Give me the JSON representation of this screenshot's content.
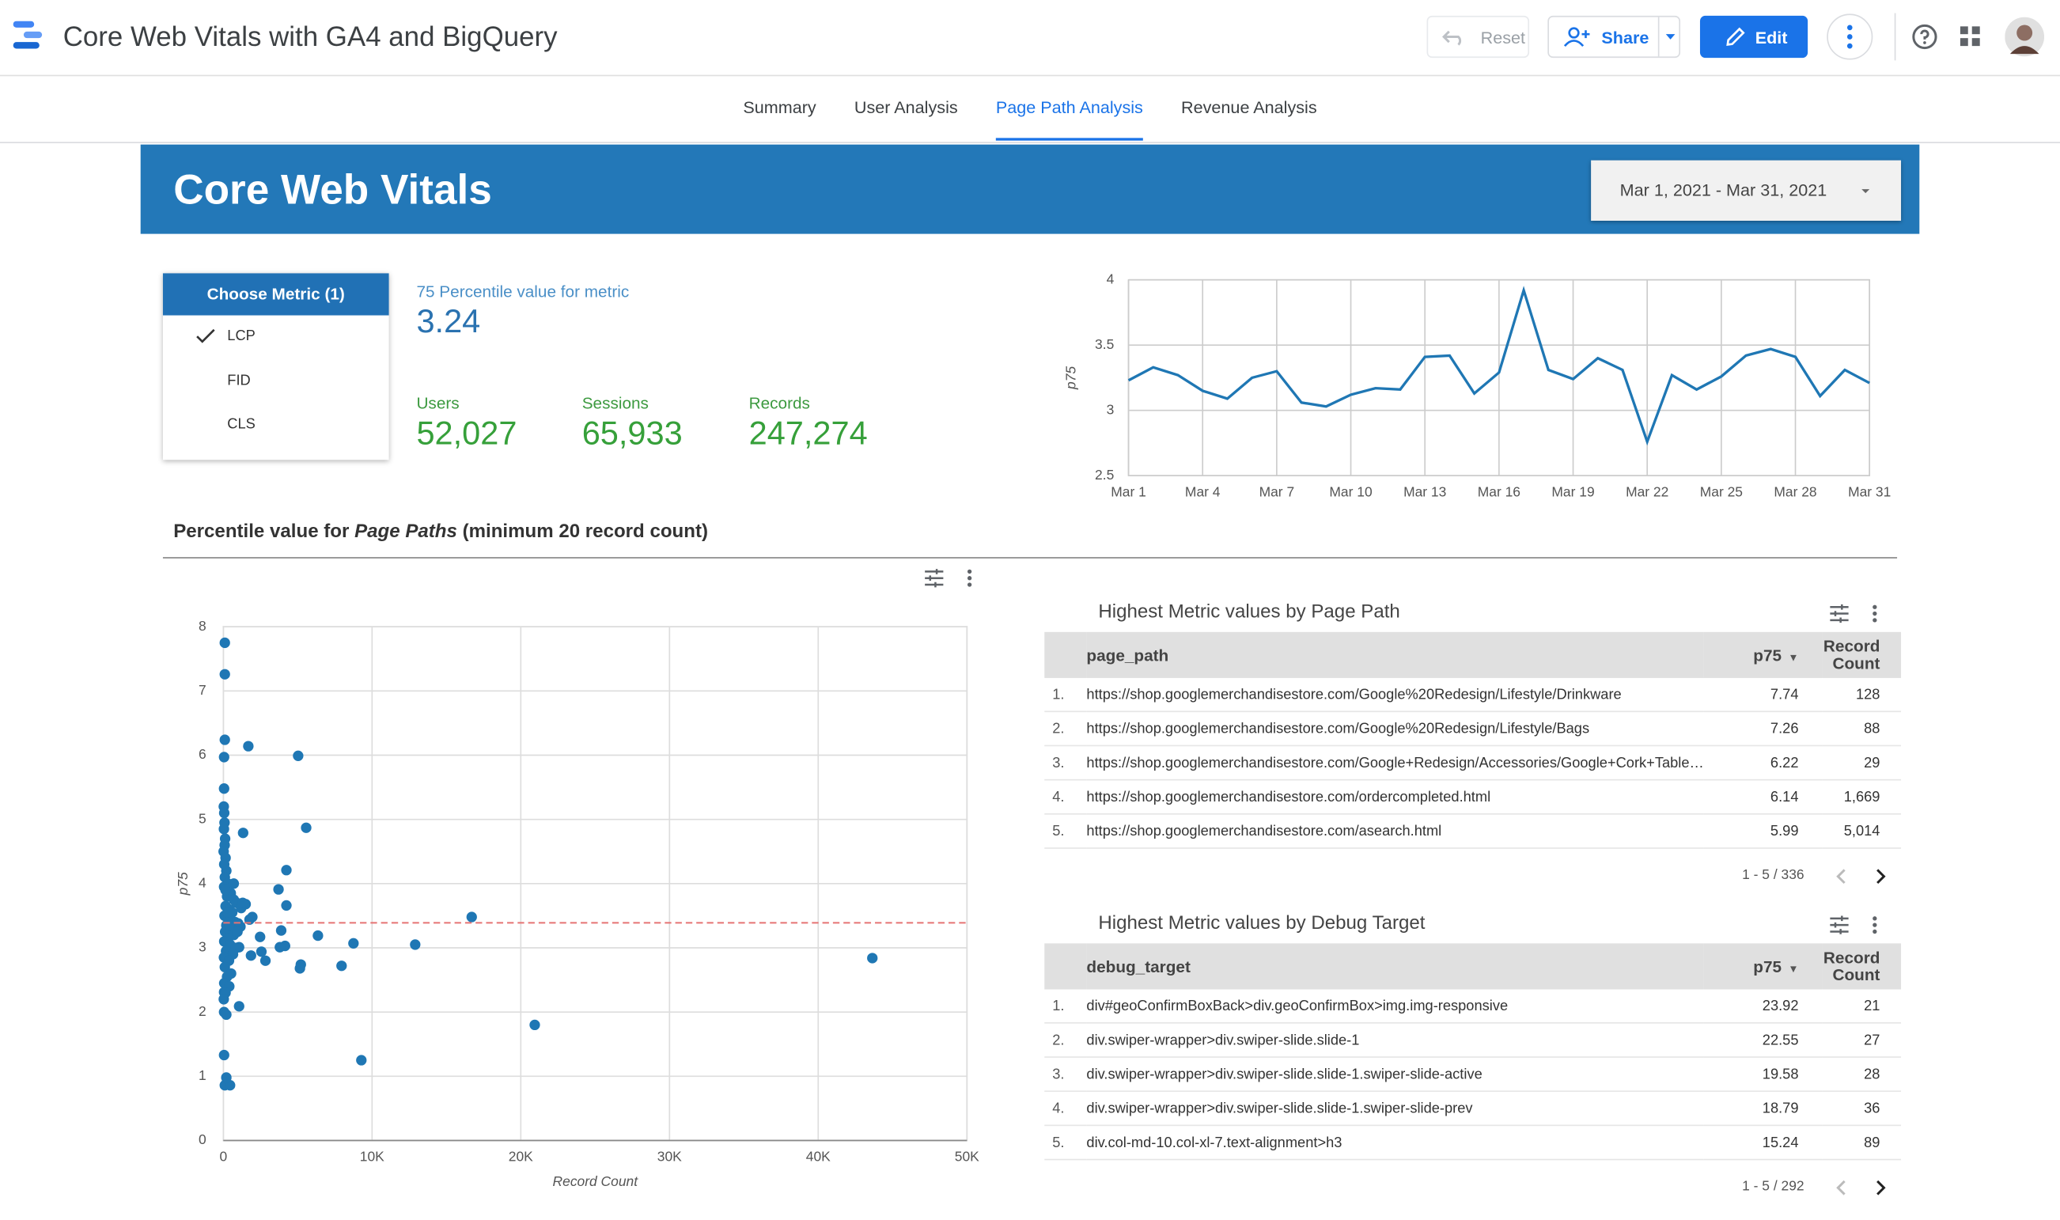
{
  "header": {
    "title": "Core Web Vitals with GA4 and BigQuery",
    "reset": "Reset",
    "share": "Share",
    "edit": "Edit"
  },
  "tabs": [
    "Summary",
    "User Analysis",
    "Page Path Analysis",
    "Revenue Analysis"
  ],
  "active_tab": 2,
  "banner": {
    "title": "Core Web Vitals",
    "date_range": "Mar 1, 2021 - Mar 31, 2021"
  },
  "metric_selector": {
    "title": "Choose Metric (1)",
    "options": [
      "LCP",
      "FID",
      "CLS"
    ],
    "selected": 0
  },
  "kpis": {
    "percentile_label": "75 Percentile value for metric",
    "percentile_value": "3.24",
    "items": [
      {
        "label": "Users",
        "value": "52,027"
      },
      {
        "label": "Sessions",
        "value": "65,933"
      },
      {
        "label": "Records",
        "value": "247,274"
      }
    ]
  },
  "section_title": {
    "before": "Percentile value for ",
    "italic": "Page Paths",
    "after": " (minimum 20 record count)"
  },
  "chart_data": [
    {
      "type": "line",
      "y_label": "p75",
      "color": "#1f77b4",
      "grid": true,
      "categories": [
        "Mar 1",
        null,
        null,
        "Mar 4",
        null,
        null,
        "Mar 7",
        null,
        null,
        "Mar 10",
        null,
        null,
        "Mar 13",
        null,
        null,
        "Mar 16",
        null,
        null,
        "Mar 19",
        null,
        null,
        "Mar 22",
        null,
        null,
        "Mar 25",
        null,
        null,
        "Mar 28",
        null,
        null,
        "Mar 31"
      ],
      "values": [
        3.23,
        3.33,
        3.27,
        3.15,
        3.09,
        3.25,
        3.3,
        3.06,
        3.03,
        3.12,
        3.17,
        3.16,
        3.41,
        3.42,
        3.13,
        3.29,
        3.92,
        3.31,
        3.24,
        3.4,
        3.31,
        2.76,
        3.27,
        3.16,
        3.26,
        3.42,
        3.47,
        3.41,
        3.11,
        3.31,
        3.21
      ],
      "ylim": [
        2.5,
        4
      ],
      "yticks": [
        2.5,
        3,
        3.5,
        4
      ]
    },
    {
      "type": "scatter",
      "x_label": "Record Count",
      "y_label": "p75",
      "color": "#1f77b4",
      "grid": true,
      "reference_line": {
        "value": 3.39,
        "color": "#e57373"
      },
      "x": [
        100,
        100,
        1680,
        5030,
        100,
        50,
        50,
        5570,
        1330,
        4240,
        3710,
        4240,
        16700,
        6360,
        8750,
        12900,
        43640,
        7950,
        5210,
        5150,
        3890,
        4150,
        3800,
        2470,
        2560,
        2830,
        1860,
        1060,
        1760,
        1500,
        1150,
        1950,
        20940,
        9280,
        1060,
        100,
        450,
        200,
        50,
        50,
        200,
        50,
        30,
        60,
        80,
        40,
        120,
        90,
        20,
        150,
        60,
        200,
        100,
        300,
        50,
        500,
        250,
        700,
        900,
        150,
        400,
        1200,
        600,
        80,
        350,
        800,
        1000,
        200,
        550,
        120,
        700,
        300,
        60,
        450,
        850,
        180,
        650,
        40,
        380,
        100,
        520,
        250,
        60,
        400,
        150,
        30,
        300,
        150,
        700,
        400,
        1300,
        950
      ],
      "values": [
        7.75,
        7.26,
        6.14,
        5.99,
        6.24,
        5.97,
        5.48,
        4.87,
        4.79,
        4.21,
        3.91,
        3.66,
        3.48,
        3.19,
        3.07,
        3.05,
        2.84,
        2.72,
        2.74,
        2.68,
        3.27,
        3.03,
        3.01,
        3.17,
        2.94,
        2.8,
        2.88,
        3.01,
        3.44,
        3.68,
        3.33,
        3.48,
        1.8,
        1.25,
        2.09,
        0.86,
        0.86,
        0.98,
        1.33,
        2.0,
        1.96,
        2.31,
        5.2,
        5.1,
        4.95,
        4.85,
        4.7,
        4.6,
        4.5,
        4.4,
        4.3,
        4.2,
        4.1,
        4.0,
        3.95,
        3.85,
        3.8,
        3.75,
        3.7,
        3.65,
        3.6,
        3.62,
        3.55,
        3.5,
        3.45,
        3.4,
        3.38,
        3.35,
        3.3,
        3.25,
        3.2,
        3.15,
        3.1,
        3.05,
        3.0,
        2.95,
        2.9,
        2.85,
        2.8,
        2.7,
        2.6,
        2.55,
        2.45,
        2.4,
        2.3,
        2.2,
        3.55,
        3.9,
        4.0,
        3.35,
        3.7,
        3.25
      ],
      "xlim": [
        0,
        50000
      ],
      "xticks": [
        0,
        {
          "value": 10000,
          "label": "10K"
        },
        {
          "value": 20000,
          "label": "20K"
        },
        {
          "value": 30000,
          "label": "30K"
        },
        {
          "value": 40000,
          "label": "40K"
        },
        {
          "value": 50000,
          "label": "50K"
        }
      ],
      "ylim": [
        0,
        8
      ],
      "yticks": [
        0,
        1,
        2,
        3,
        4,
        5,
        6,
        7,
        8
      ]
    }
  ],
  "tables": [
    {
      "title": "Highest Metric values by Page Path",
      "columns": [
        "page_path",
        "p75",
        "Record Count"
      ],
      "rows": [
        [
          "1.",
          "https://shop.googlemerchandisestore.com/Google%20Redesign/Lifestyle/Drinkware",
          7.74,
          128
        ],
        [
          "2.",
          "https://shop.googlemerchandisestore.com/Google%20Redesign/Lifestyle/Bags",
          7.26,
          88
        ],
        [
          "3.",
          "https://shop.googlemerchandisestore.com/Google+Redesign/Accessories/Google+Cork+Tablet+...",
          6.22,
          29
        ],
        [
          "4.",
          "https://shop.googlemerchandisestore.com/ordercompleted.html",
          6.14,
          "1,669"
        ],
        [
          "5.",
          "https://shop.googlemerchandisestore.com/asearch.html",
          5.99,
          "5,014"
        ]
      ],
      "pagination": "1 - 5 / 336"
    },
    {
      "title": "Highest Metric values by Debug Target",
      "columns": [
        "debug_target",
        "p75",
        "Record Count"
      ],
      "rows": [
        [
          "1.",
          "div#geoConfirmBoxBack>div.geoConfirmBox>img.img-responsive",
          23.92,
          21
        ],
        [
          "2.",
          "div.swiper-wrapper>div.swiper-slide.slide-1",
          22.55,
          27
        ],
        [
          "3.",
          "div.swiper-wrapper>div.swiper-slide.slide-1.swiper-slide-active",
          19.58,
          28
        ],
        [
          "4.",
          "div.swiper-wrapper>div.swiper-slide.slide-1.swiper-slide-prev",
          18.79,
          36
        ],
        [
          "5.",
          "div.col-md-10.col-xl-7.text-alignment>h3",
          15.24,
          89
        ]
      ],
      "pagination": "1 - 5 / 292"
    }
  ]
}
